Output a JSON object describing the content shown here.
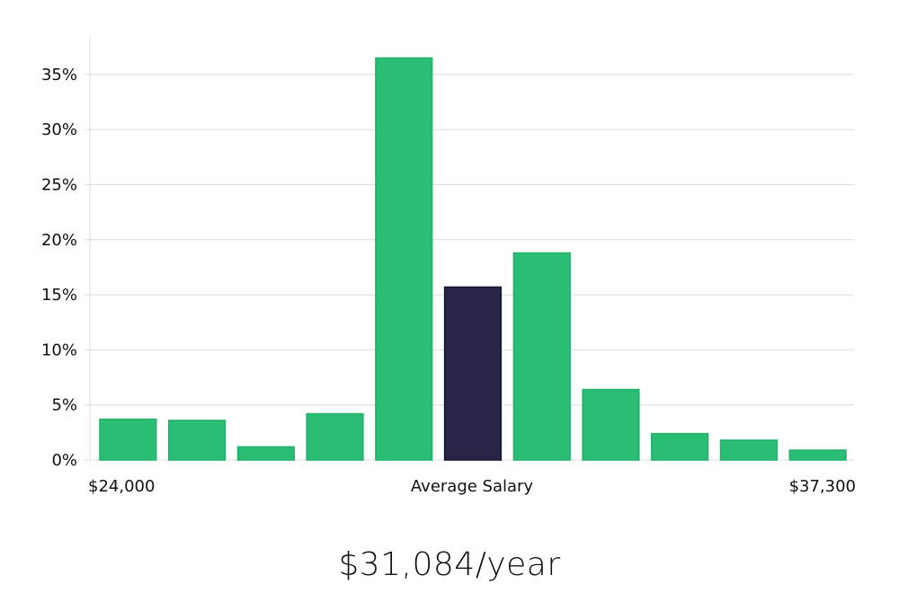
{
  "chart_data": {
    "type": "bar",
    "title": "",
    "ylabel": "",
    "ylim": [
      0,
      38.5
    ],
    "yticks": [
      0,
      5,
      10,
      15,
      20,
      25,
      30,
      35
    ],
    "ytick_labels": [
      "0%",
      "5%",
      "10%",
      "15%",
      "20%",
      "25%",
      "30%",
      "35%"
    ],
    "values": [
      3.7,
      3.6,
      1.2,
      4.2,
      36.5,
      15.7,
      18.8,
      6.4,
      2.4,
      1.8,
      0.9
    ],
    "highlight_index": 5,
    "bar_color": "#2abd74",
    "bar_edge_color": "#22b06a",
    "highlight_color": "#282546",
    "highlight_edge_color": "#14122e",
    "grid": true,
    "x_labels": {
      "left": "$24,000",
      "center": "Average Salary",
      "right": "$37,300"
    }
  },
  "salary_text": "$31,084/year"
}
